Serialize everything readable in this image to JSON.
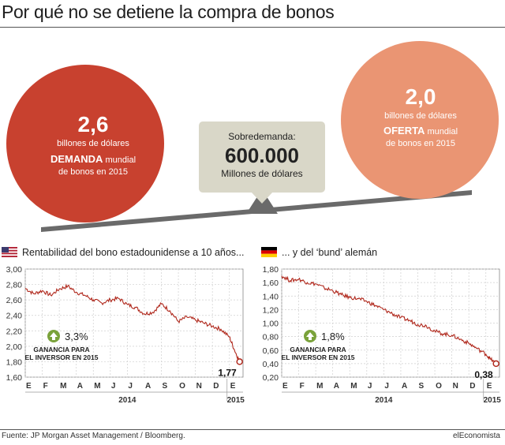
{
  "title": "Por qué no se detiene la compra de bonos",
  "demand": {
    "value": "2,6",
    "unit": "billones de dólares",
    "label_bold": "DEMANDA",
    "label_rest": " mundial",
    "label_line2": "de bonos en 2015",
    "color": "#c8412f"
  },
  "supply": {
    "value": "2,0",
    "unit": "billones de dólares",
    "label_bold": "OFERTA",
    "label_rest": " mundial",
    "label_line2": "de bonos en 2015",
    "color": "#ea9573"
  },
  "excess": {
    "label": "Sobredemanda:",
    "value": "600.000",
    "unit": "Millones de dólares",
    "color": "#d9d7c8"
  },
  "source": "Fuente: JP Morgan Asset Management / Bloomberg.",
  "brand": "elEconomista",
  "chart_data": [
    {
      "type": "line",
      "title": "Rentabilidad del bono estadounidense a 10 años...",
      "flag_icon": "us-flag-icon",
      "color": "#b0281c",
      "x_ticks": [
        "E",
        "F",
        "M",
        "A",
        "M",
        "J",
        "J",
        "A",
        "S",
        "O",
        "N",
        "D",
        "E"
      ],
      "x_group_labels": [
        "2014",
        "2015"
      ],
      "y_ticks": [
        "3,00",
        "2,80",
        "2,60",
        "2,40",
        "2,20",
        "2,00",
        "1,80",
        "1,60"
      ],
      "ylim": [
        1.6,
        3.0
      ],
      "grid": true,
      "x": [
        0,
        0.5,
        1,
        1.5,
        2,
        2.5,
        3,
        3.5,
        4,
        4.5,
        5,
        5.5,
        6,
        6.5,
        7,
        7.5,
        8,
        8.5,
        9,
        9.5,
        10,
        10.5,
        11,
        11.5,
        12,
        12.3,
        12.6
      ],
      "values": [
        2.75,
        2.68,
        2.72,
        2.66,
        2.74,
        2.78,
        2.7,
        2.66,
        2.6,
        2.56,
        2.6,
        2.62,
        2.54,
        2.5,
        2.42,
        2.44,
        2.55,
        2.46,
        2.32,
        2.38,
        2.34,
        2.3,
        2.26,
        2.22,
        2.12,
        1.95,
        1.8
      ],
      "end_label": "1,77",
      "badge_value": "3,3%",
      "badge_label_1": "GANANCIA PARA",
      "badge_label_2": "EL INVERSOR EN 2015"
    },
    {
      "type": "line",
      "title": "... y del ‘bund’ alemán",
      "flag_icon": "germany-flag-icon",
      "color": "#b0281c",
      "x_ticks": [
        "E",
        "F",
        "M",
        "A",
        "M",
        "J",
        "J",
        "A",
        "S",
        "O",
        "N",
        "D",
        "E"
      ],
      "x_group_labels": [
        "2014",
        "2015"
      ],
      "y_ticks": [
        "1,80",
        "1,60",
        "1,40",
        "1,20",
        "1,00",
        "0,80",
        "0,60",
        "0,40",
        "0,20"
      ],
      "ylim": [
        0.2,
        1.8
      ],
      "grid": true,
      "x": [
        0,
        0.5,
        1,
        1.5,
        2,
        2.5,
        3,
        3.5,
        4,
        4.5,
        5,
        5.5,
        6,
        6.5,
        7,
        7.5,
        8,
        8.5,
        9,
        9.5,
        10,
        10.5,
        11,
        11.5,
        12,
        12.3,
        12.6
      ],
      "values": [
        1.7,
        1.63,
        1.65,
        1.6,
        1.58,
        1.52,
        1.48,
        1.42,
        1.38,
        1.36,
        1.32,
        1.26,
        1.2,
        1.14,
        1.08,
        1.04,
        0.98,
        0.96,
        0.88,
        0.84,
        0.82,
        0.76,
        0.7,
        0.62,
        0.54,
        0.46,
        0.4
      ],
      "end_label": "0,38",
      "badge_value": "1,8%",
      "badge_label_1": "GANANCIA PARA",
      "badge_label_2": "EL INVERSOR EN 2015"
    }
  ]
}
